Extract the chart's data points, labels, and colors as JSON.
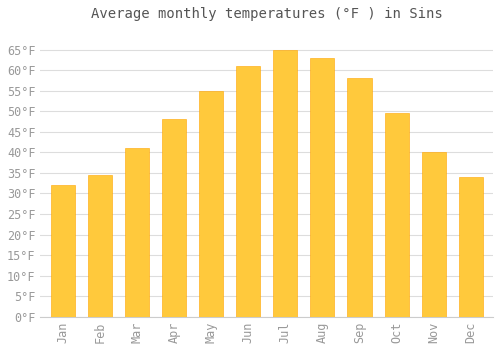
{
  "title": "Average monthly temperatures (°F ) in Sins",
  "months": [
    "Jan",
    "Feb",
    "Mar",
    "Apr",
    "May",
    "Jun",
    "Jul",
    "Aug",
    "Sep",
    "Oct",
    "Nov",
    "Dec"
  ],
  "values": [
    32,
    34.5,
    41,
    48,
    55,
    61,
    65,
    63,
    58,
    49.5,
    40,
    34
  ],
  "bar_color_top": "#FFC93C",
  "bar_color_bottom": "#FFB020",
  "bar_edge_color": "#FFA500",
  "figure_bg": "#FFFFFF",
  "plot_bg": "#FFFFFF",
  "grid_color": "#DDDDDD",
  "title_color": "#555555",
  "tick_color": "#999999",
  "spine_color": "#CCCCCC",
  "ylim": [
    0,
    70
  ],
  "yticks": [
    0,
    5,
    10,
    15,
    20,
    25,
    30,
    35,
    40,
    45,
    50,
    55,
    60,
    65
  ],
  "ylabel_suffix": "°F",
  "title_fontsize": 10,
  "tick_fontsize": 8.5,
  "bar_width": 0.65
}
